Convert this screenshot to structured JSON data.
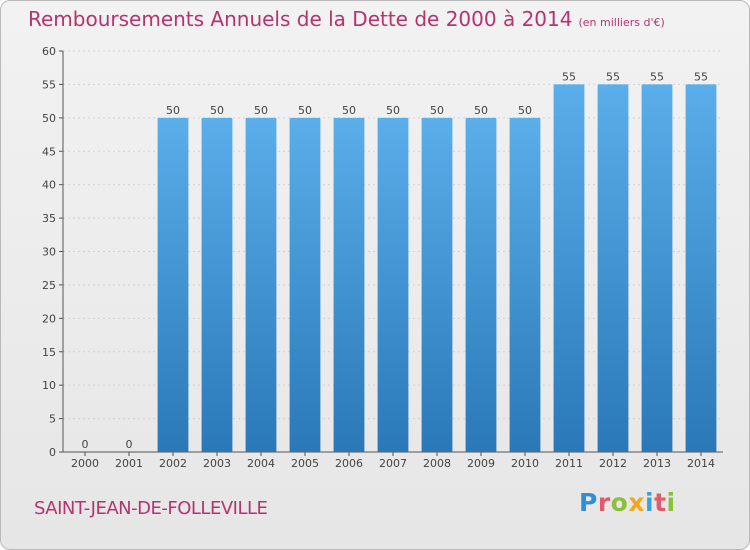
{
  "chart_data": {
    "type": "bar",
    "title": "Remboursements Annuels de la Dette de 2000 à 2014",
    "unit_note": "(en milliers d'€)",
    "categories": [
      "2000",
      "2001",
      "2002",
      "2003",
      "2004",
      "2005",
      "2006",
      "2007",
      "2008",
      "2009",
      "2010",
      "2011",
      "2012",
      "2013",
      "2014"
    ],
    "values": [
      0,
      0,
      50,
      50,
      50,
      50,
      50,
      50,
      50,
      50,
      50,
      55,
      55,
      55,
      55
    ],
    "ylim": [
      0,
      60
    ],
    "yticks": [
      0,
      5,
      10,
      15,
      20,
      25,
      30,
      35,
      40,
      45,
      50,
      55,
      60
    ],
    "xlabel": "",
    "ylabel": "",
    "grid": true,
    "colors": {
      "bar_top": "#5aaeea",
      "bar_bottom": "#2a78b8",
      "grid": "#d2d2d2",
      "axis": "#555555"
    }
  },
  "commune": "SAINT-JEAN-DE-FOLLEVILLE",
  "logo": {
    "p": "P",
    "r": "r",
    "o": "o",
    "x": "x",
    "i1": "i",
    "t": "t",
    "i2": "i"
  }
}
